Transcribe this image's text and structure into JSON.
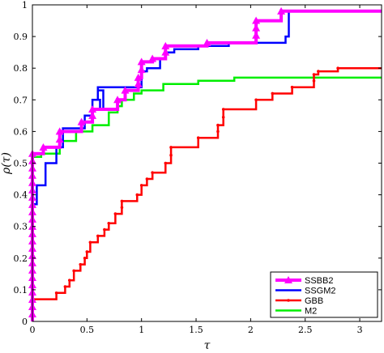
{
  "chart_data": {
    "type": "line",
    "xlabel": "τ",
    "ylabel": "ρ(τ)",
    "xlim": [
      0,
      3.2
    ],
    "ylim": [
      0,
      1
    ],
    "xticks": [
      0,
      0.5,
      1,
      1.5,
      2,
      2.5,
      3
    ],
    "xtick_labels": [
      "0",
      "0.5",
      "1",
      "1.5",
      "2",
      "2.5",
      "3"
    ],
    "yticks": [
      0,
      0.1,
      0.2,
      0.3,
      0.4,
      0.5,
      0.6,
      0.7,
      0.8,
      0.9,
      1
    ],
    "ytick_labels": [
      "0",
      "0.1",
      "0.2",
      "0.3",
      "0.4",
      "0.5",
      "0.6",
      "0.7",
      "0.8",
      "0.9",
      "1"
    ],
    "grid": false,
    "legend_position": "lower-right",
    "series": [
      {
        "name": "SSBB2",
        "color": "#ff00ff",
        "marker": "triangle",
        "points": [
          [
            0,
            0
          ],
          [
            0,
            0.53
          ],
          [
            0.1,
            0.53
          ],
          [
            0.1,
            0.55
          ],
          [
            0.25,
            0.55
          ],
          [
            0.25,
            0.6
          ],
          [
            0.45,
            0.6
          ],
          [
            0.45,
            0.63
          ],
          [
            0.55,
            0.63
          ],
          [
            0.55,
            0.67
          ],
          [
            0.78,
            0.67
          ],
          [
            0.78,
            0.7
          ],
          [
            0.85,
            0.7
          ],
          [
            0.85,
            0.73
          ],
          [
            0.97,
            0.73
          ],
          [
            0.97,
            0.77
          ],
          [
            1.0,
            0.77
          ],
          [
            1.0,
            0.82
          ],
          [
            1.1,
            0.82
          ],
          [
            1.1,
            0.83
          ],
          [
            1.22,
            0.83
          ],
          [
            1.22,
            0.87
          ],
          [
            1.6,
            0.87
          ],
          [
            1.6,
            0.88
          ],
          [
            2.05,
            0.88
          ],
          [
            2.05,
            0.95
          ],
          [
            2.28,
            0.95
          ],
          [
            2.28,
            0.98
          ],
          [
            3.2,
            0.98
          ]
        ]
      },
      {
        "name": "SSGM2",
        "color": "#0000ff",
        "marker": "none",
        "points": [
          [
            0,
            0
          ],
          [
            0,
            0.37
          ],
          [
            0.04,
            0.37
          ],
          [
            0.04,
            0.43
          ],
          [
            0.12,
            0.43
          ],
          [
            0.12,
            0.5
          ],
          [
            0.22,
            0.5
          ],
          [
            0.22,
            0.55
          ],
          [
            0.28,
            0.55
          ],
          [
            0.28,
            0.61
          ],
          [
            0.48,
            0.61
          ],
          [
            0.48,
            0.65
          ],
          [
            0.55,
            0.65
          ],
          [
            0.55,
            0.7
          ],
          [
            0.6,
            0.7
          ],
          [
            0.6,
            0.73
          ],
          [
            0.65,
            0.73
          ],
          [
            0.65,
            0.67
          ],
          [
            0.62,
            0.67
          ],
          [
            0.62,
            0.7
          ],
          [
            0.6,
            0.7
          ],
          [
            0.6,
            0.74
          ],
          [
            1.0,
            0.74
          ],
          [
            1.0,
            0.79
          ],
          [
            1.05,
            0.79
          ],
          [
            1.05,
            0.8
          ],
          [
            1.17,
            0.8
          ],
          [
            1.17,
            0.83
          ],
          [
            1.22,
            0.83
          ],
          [
            1.22,
            0.85
          ],
          [
            1.3,
            0.85
          ],
          [
            1.3,
            0.86
          ],
          [
            1.52,
            0.86
          ],
          [
            1.52,
            0.87
          ],
          [
            1.8,
            0.87
          ],
          [
            1.8,
            0.88
          ],
          [
            2.32,
            0.88
          ],
          [
            2.32,
            0.9
          ],
          [
            2.35,
            0.9
          ],
          [
            2.35,
            0.98
          ],
          [
            3.2,
            0.98
          ]
        ]
      },
      {
        "name": "GBB",
        "color": "#ff0000",
        "marker": "dot",
        "points": [
          [
            0,
            0
          ],
          [
            0,
            0.07
          ],
          [
            0.22,
            0.07
          ],
          [
            0.22,
            0.09
          ],
          [
            0.3,
            0.09
          ],
          [
            0.3,
            0.11
          ],
          [
            0.34,
            0.11
          ],
          [
            0.34,
            0.13
          ],
          [
            0.38,
            0.13
          ],
          [
            0.38,
            0.16
          ],
          [
            0.44,
            0.16
          ],
          [
            0.44,
            0.18
          ],
          [
            0.48,
            0.18
          ],
          [
            0.48,
            0.2
          ],
          [
            0.5,
            0.2
          ],
          [
            0.5,
            0.22
          ],
          [
            0.53,
            0.22
          ],
          [
            0.53,
            0.25
          ],
          [
            0.6,
            0.25
          ],
          [
            0.6,
            0.27
          ],
          [
            0.66,
            0.27
          ],
          [
            0.66,
            0.29
          ],
          [
            0.7,
            0.29
          ],
          [
            0.7,
            0.31
          ],
          [
            0.76,
            0.31
          ],
          [
            0.76,
            0.34
          ],
          [
            0.82,
            0.34
          ],
          [
            0.82,
            0.38
          ],
          [
            0.96,
            0.38
          ],
          [
            0.96,
            0.4
          ],
          [
            1.0,
            0.4
          ],
          [
            1.0,
            0.43
          ],
          [
            1.05,
            0.43
          ],
          [
            1.05,
            0.45
          ],
          [
            1.1,
            0.45
          ],
          [
            1.1,
            0.47
          ],
          [
            1.22,
            0.47
          ],
          [
            1.22,
            0.5
          ],
          [
            1.27,
            0.5
          ],
          [
            1.27,
            0.55
          ],
          [
            1.52,
            0.55
          ],
          [
            1.52,
            0.58
          ],
          [
            1.7,
            0.58
          ],
          [
            1.7,
            0.62
          ],
          [
            1.75,
            0.62
          ],
          [
            1.75,
            0.67
          ],
          [
            2.05,
            0.67
          ],
          [
            2.05,
            0.7
          ],
          [
            2.2,
            0.7
          ],
          [
            2.2,
            0.72
          ],
          [
            2.38,
            0.72
          ],
          [
            2.38,
            0.74
          ],
          [
            2.58,
            0.74
          ],
          [
            2.58,
            0.78
          ],
          [
            2.62,
            0.78
          ],
          [
            2.62,
            0.79
          ],
          [
            2.8,
            0.79
          ],
          [
            2.8,
            0.8
          ],
          [
            3.2,
            0.8
          ]
        ]
      },
      {
        "name": "M2",
        "color": "#00ee00",
        "marker": "none",
        "points": [
          [
            0,
            0
          ],
          [
            0,
            0.52
          ],
          [
            0.08,
            0.52
          ],
          [
            0.08,
            0.53
          ],
          [
            0.25,
            0.53
          ],
          [
            0.25,
            0.57
          ],
          [
            0.4,
            0.57
          ],
          [
            0.4,
            0.6
          ],
          [
            0.55,
            0.6
          ],
          [
            0.55,
            0.62
          ],
          [
            0.7,
            0.62
          ],
          [
            0.7,
            0.66
          ],
          [
            0.78,
            0.66
          ],
          [
            0.78,
            0.68
          ],
          [
            0.82,
            0.68
          ],
          [
            0.82,
            0.7
          ],
          [
            0.93,
            0.7
          ],
          [
            0.93,
            0.72
          ],
          [
            1.0,
            0.72
          ],
          [
            1.0,
            0.73
          ],
          [
            1.2,
            0.73
          ],
          [
            1.2,
            0.75
          ],
          [
            1.52,
            0.75
          ],
          [
            1.52,
            0.76
          ],
          [
            1.85,
            0.76
          ],
          [
            1.85,
            0.77
          ],
          [
            3.2,
            0.77
          ]
        ]
      }
    ]
  }
}
